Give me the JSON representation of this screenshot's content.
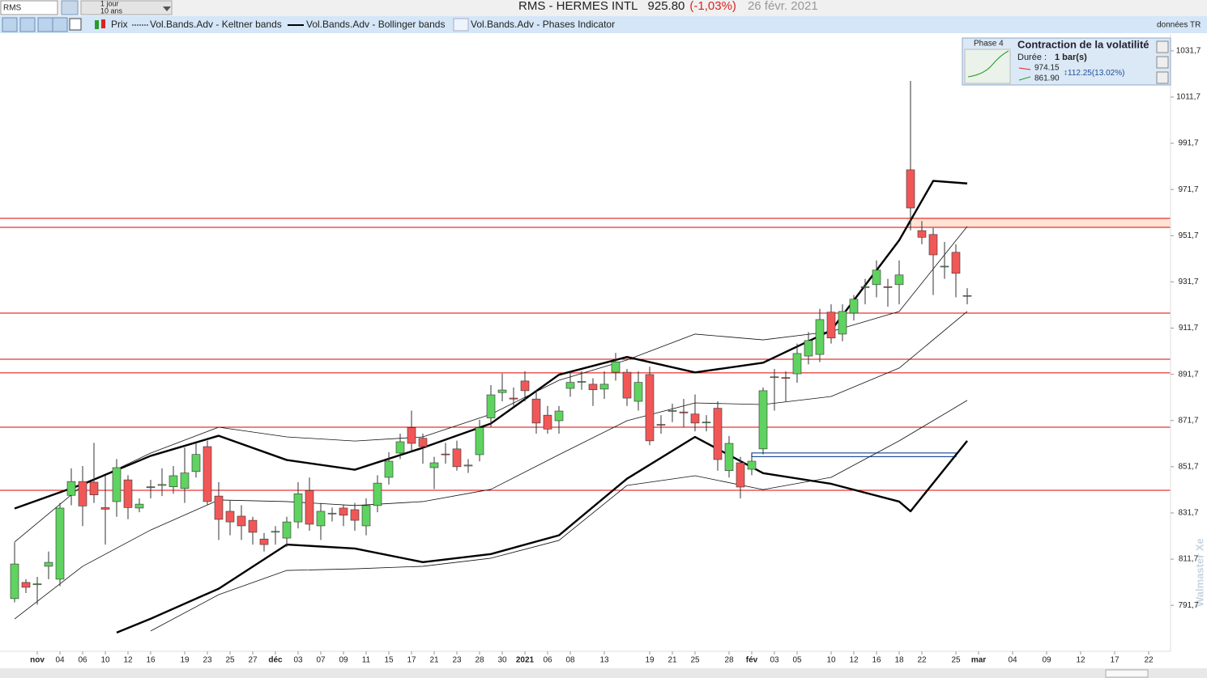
{
  "header": {
    "symbol": "RMS",
    "period": "1 jour",
    "range": "10 ans",
    "title": "RMS - HERMES INTL",
    "price": "925.80",
    "change": "(-1,03%)",
    "date": "26 févr. 2021",
    "source": "données TR"
  },
  "phase_box": {
    "phase": "Phase 4",
    "title": "Contraction de la volatilité",
    "duration_label": "Durée :",
    "duration": "1 bar(s)",
    "upper": "974.15",
    "lower": "861.90",
    "range": "112.25(13.02%)"
  },
  "watermark": "Walmaster Xe",
  "chart_data": {
    "type": "candlestick",
    "price_name": "Prix",
    "phases_legend": "Vol.Bands.Adv - Phases Indicator",
    "categories": [
      null,
      null,
      "nov",
      null,
      "04",
      null,
      "06",
      null,
      "10",
      null,
      "12",
      null,
      "16",
      null,
      null,
      "19",
      null,
      "23",
      null,
      "25",
      null,
      "27",
      null,
      "déc",
      null,
      "03",
      null,
      "07",
      null,
      "09",
      null,
      "11",
      null,
      "15",
      null,
      "17",
      null,
      "21",
      null,
      "23",
      null,
      "28",
      null,
      "30",
      null,
      "2021",
      null,
      "06",
      null,
      "08",
      null,
      null,
      "13",
      null,
      null,
      null,
      "19",
      null,
      "21",
      null,
      "25",
      null,
      null,
      "28",
      null,
      "fév",
      null,
      "03",
      null,
      "05",
      null,
      null,
      "10",
      null,
      "12",
      null,
      "16",
      null,
      "18",
      null,
      "22",
      null,
      null,
      "25",
      null,
      "mar",
      null,
      null,
      "04",
      null,
      null,
      "09",
      null,
      null,
      "12",
      null,
      null,
      "17",
      null,
      null,
      "22"
    ],
    "open": [
      794.6,
      801.6,
      800.6,
      808.6,
      803,
      839.3,
      845.3,
      845,
      834,
      836.6,
      846,
      833.8,
      843,
      843.6,
      843,
      842.3,
      849.6,
      860.4,
      839,
      832.4,
      830.3,
      828.5,
      820.4,
      823.5,
      820.8,
      827.8,
      841.4,
      826.1,
      831.3,
      833.8,
      833.1,
      826.1,
      834.9,
      847.1,
      857.6,
      868.6,
      864,
      851.3,
      857.2,
      859.4,
      852,
      856.9,
      872.8,
      883.8,
      881.4,
      888.8,
      881,
      874,
      871.6,
      885.6,
      888.5,
      887.4,
      885.3,
      892.6,
      892.6,
      880,
      891.6,
      870,
      875.8,
      875.4,
      874.5,
      871,
      877,
      850,
      853.4,
      850.6,
      859.4,
      890.5,
      890.3,
      891.9,
      899.6,
      900.3,
      918.6,
      909.1,
      918.2,
      929.4,
      930.5,
      929.6,
      930.5,
      980.2,
      953.9,
      952.2,
      938.2,
      944.5,
      925.8,
      null,
      null,
      null,
      null,
      null,
      null,
      null,
      null,
      null,
      null,
      null,
      null,
      null,
      null,
      null,
      null
    ],
    "high": [
      819,
      803,
      804,
      815,
      836,
      851,
      852,
      862,
      848,
      855,
      848,
      838,
      846,
      851,
      852,
      860,
      862,
      863,
      845,
      837,
      835,
      830,
      823,
      826,
      830,
      845,
      847,
      836,
      834,
      835,
      836,
      838,
      848,
      858,
      866,
      876,
      866,
      856,
      862,
      863,
      855,
      872,
      887,
      892,
      886,
      893,
      885,
      878,
      878,
      893,
      893,
      890,
      893,
      901,
      894,
      893,
      895,
      874,
      879,
      881,
      883,
      874,
      880,
      865,
      856,
      857,
      886,
      894,
      893,
      905,
      910,
      920,
      922,
      922,
      926,
      933,
      941,
      933,
      941,
      1018.7,
      958,
      955,
      949,
      948,
      929,
      null,
      null,
      null,
      null,
      null,
      null,
      null,
      null,
      null,
      null,
      null,
      null,
      null,
      null,
      null,
      null
    ],
    "low": [
      793,
      797,
      792,
      803,
      800,
      835,
      826,
      836,
      818,
      830,
      829,
      832,
      838,
      839,
      840,
      836,
      847,
      835,
      820,
      822,
      820,
      818,
      815,
      818,
      817,
      825,
      824,
      820,
      828,
      826,
      824,
      822,
      832,
      844,
      855,
      858,
      853,
      842,
      853,
      850,
      849,
      854,
      869,
      880,
      878,
      880,
      866,
      866,
      866,
      882,
      885,
      878,
      881,
      889,
      878,
      876,
      861,
      866,
      871,
      869,
      867,
      867,
      850,
      847,
      838,
      848,
      857,
      876,
      880,
      888,
      896,
      897,
      905,
      906,
      915,
      922,
      925,
      921,
      922,
      954,
      948,
      926,
      933,
      925,
      922,
      null,
      null,
      null,
      null,
      null,
      null,
      null,
      null,
      null,
      null,
      null,
      null,
      null,
      null,
      null,
      null
    ],
    "close": [
      809.6,
      799.5,
      801.0,
      810.3,
      833.8,
      845.3,
      834.7,
      839.5,
      833.3,
      851.3,
      834,
      835.5,
      842.6,
      844,
      847.8,
      849,
      857,
      836.6,
      828.9,
      827.8,
      826.1,
      823.3,
      818,
      823.7,
      827.8,
      840,
      826.8,
      832.4,
      831.6,
      830.7,
      828.5,
      834.9,
      844.6,
      854.1,
      862.5,
      861.8,
      860.4,
      853.4,
      857,
      851.7,
      852.4,
      868.6,
      882.8,
      884.9,
      881,
      884.6,
      870.6,
      868,
      875.8,
      888.2,
      888.6,
      885,
      887.4,
      897.1,
      881.4,
      888.2,
      862.9,
      869.9,
      876,
      875,
      870.6,
      871,
      854.8,
      861.8,
      842.9,
      854.1,
      884.6,
      890.6,
      890.2,
      900.7,
      906.3,
      915.4,
      907.4,
      918.9,
      924.2,
      929.6,
      936.8,
      929.4,
      934.7,
      963.7,
      951,
      943.4,
      938.5,
      935.4,
      925.8,
      null,
      null,
      null,
      null,
      null,
      null,
      null,
      null,
      null,
      null,
      null,
      null,
      null,
      null,
      null,
      null
    ],
    "up_color": "#5fd35f",
    "down_color": "#f25757",
    "overlays": [
      {
        "legend": "Vol.Bands.Adv - Keltner bands",
        "color": "#111111",
        "width": 0.8,
        "lines": [
          {
            "x": [
              0,
              6,
              12,
              18,
              24,
              30,
              36,
              42,
              48,
              54,
              60,
              66,
              72,
              78,
              84
            ],
            "values": [
              819.1,
              843.6,
              857.6,
              868.8,
              864.6,
              862.8,
              864.6,
              874.4,
              889.1,
              897.9,
              909.1,
              906.6,
              910.2,
              918.9,
              955.7
            ]
          },
          {
            "x": [
              0,
              6,
              12,
              18,
              24,
              30,
              36,
              42,
              48,
              54,
              60,
              66,
              72,
              78,
              84
            ],
            "values": [
              785.8,
              808.6,
              824.3,
              837.3,
              836.6,
              834.9,
              836.6,
              841.9,
              856.9,
              871.6,
              879.3,
              878.6,
              882.1,
              894.4,
              918.9
            ]
          },
          {
            "x": [
              12,
              18,
              24,
              30,
              36,
              42,
              48,
              54,
              60,
              66,
              72,
              78,
              84
            ],
            "values": [
              780.6,
              796.3,
              806.8,
              807.5,
              808.6,
              812.1,
              819.8,
              843.6,
              847.8,
              841.8,
              847.1,
              862.9,
              880.4
            ]
          }
        ]
      },
      {
        "legend": "Vol.Bands.Adv - Bollinger bands",
        "color": "#000000",
        "width": 2.4,
        "lines": [
          {
            "x": [
              0,
              6,
              12,
              18,
              24,
              30,
              36,
              42,
              48,
              54,
              60,
              66,
              72,
              78,
              81,
              84
            ],
            "values": [
              833.6,
              844.1,
              856.4,
              865.1,
              854.6,
              850.4,
              859.9,
              870.4,
              891.5,
              899.2,
              892.5,
              896.7,
              910.7,
              949.7,
              975.4,
              974.3
            ]
          },
          {
            "x": [
              9,
              12,
              18,
              24,
              30,
              36,
              42,
              48,
              54,
              60,
              66,
              72,
              78,
              79,
              84
            ],
            "values": [
              779.9,
              785.9,
              798.9,
              818.0,
              816.3,
              810.4,
              813.9,
              822.0,
              846.5,
              864.6,
              848.9,
              844.3,
              836.6,
              832.4,
              862.9
            ]
          }
        ]
      }
    ],
    "hlines": {
      "color": "#e00000",
      "values": [
        959.2,
        955.3,
        918.2,
        898.2,
        892.3,
        868.8,
        841.5
      ]
    },
    "zone": {
      "color": "#ffd9c2",
      "values": [
        955.3,
        959.2
      ],
      "x": [
        79,
        100
      ]
    },
    "channel": {
      "color": "#1f4e9a",
      "values": [
        856.4,
        857.3
      ],
      "x": [
        65,
        83
      ]
    },
    "ylim": [
      771.8,
      1039.0
    ],
    "yticks": [
      {
        "value": 791.7,
        "label": "791,7"
      },
      {
        "value": 811.7,
        "label": "811,7"
      },
      {
        "value": 831.7,
        "label": "831,7"
      },
      {
        "value": 851.7,
        "label": "851,7"
      },
      {
        "value": 871.7,
        "label": "871,7"
      },
      {
        "value": 891.7,
        "label": "891,7"
      },
      {
        "value": 911.7,
        "label": "911,7"
      },
      {
        "value": 931.7,
        "label": "931,7"
      },
      {
        "value": 951.7,
        "label": "951,7"
      },
      {
        "value": 971.7,
        "label": "971,7"
      },
      {
        "value": 991.7,
        "label": "991,7"
      },
      {
        "value": 1011.7,
        "label": "1011,7"
      },
      {
        "value": 1031.7,
        "label": "1031,7"
      }
    ]
  }
}
